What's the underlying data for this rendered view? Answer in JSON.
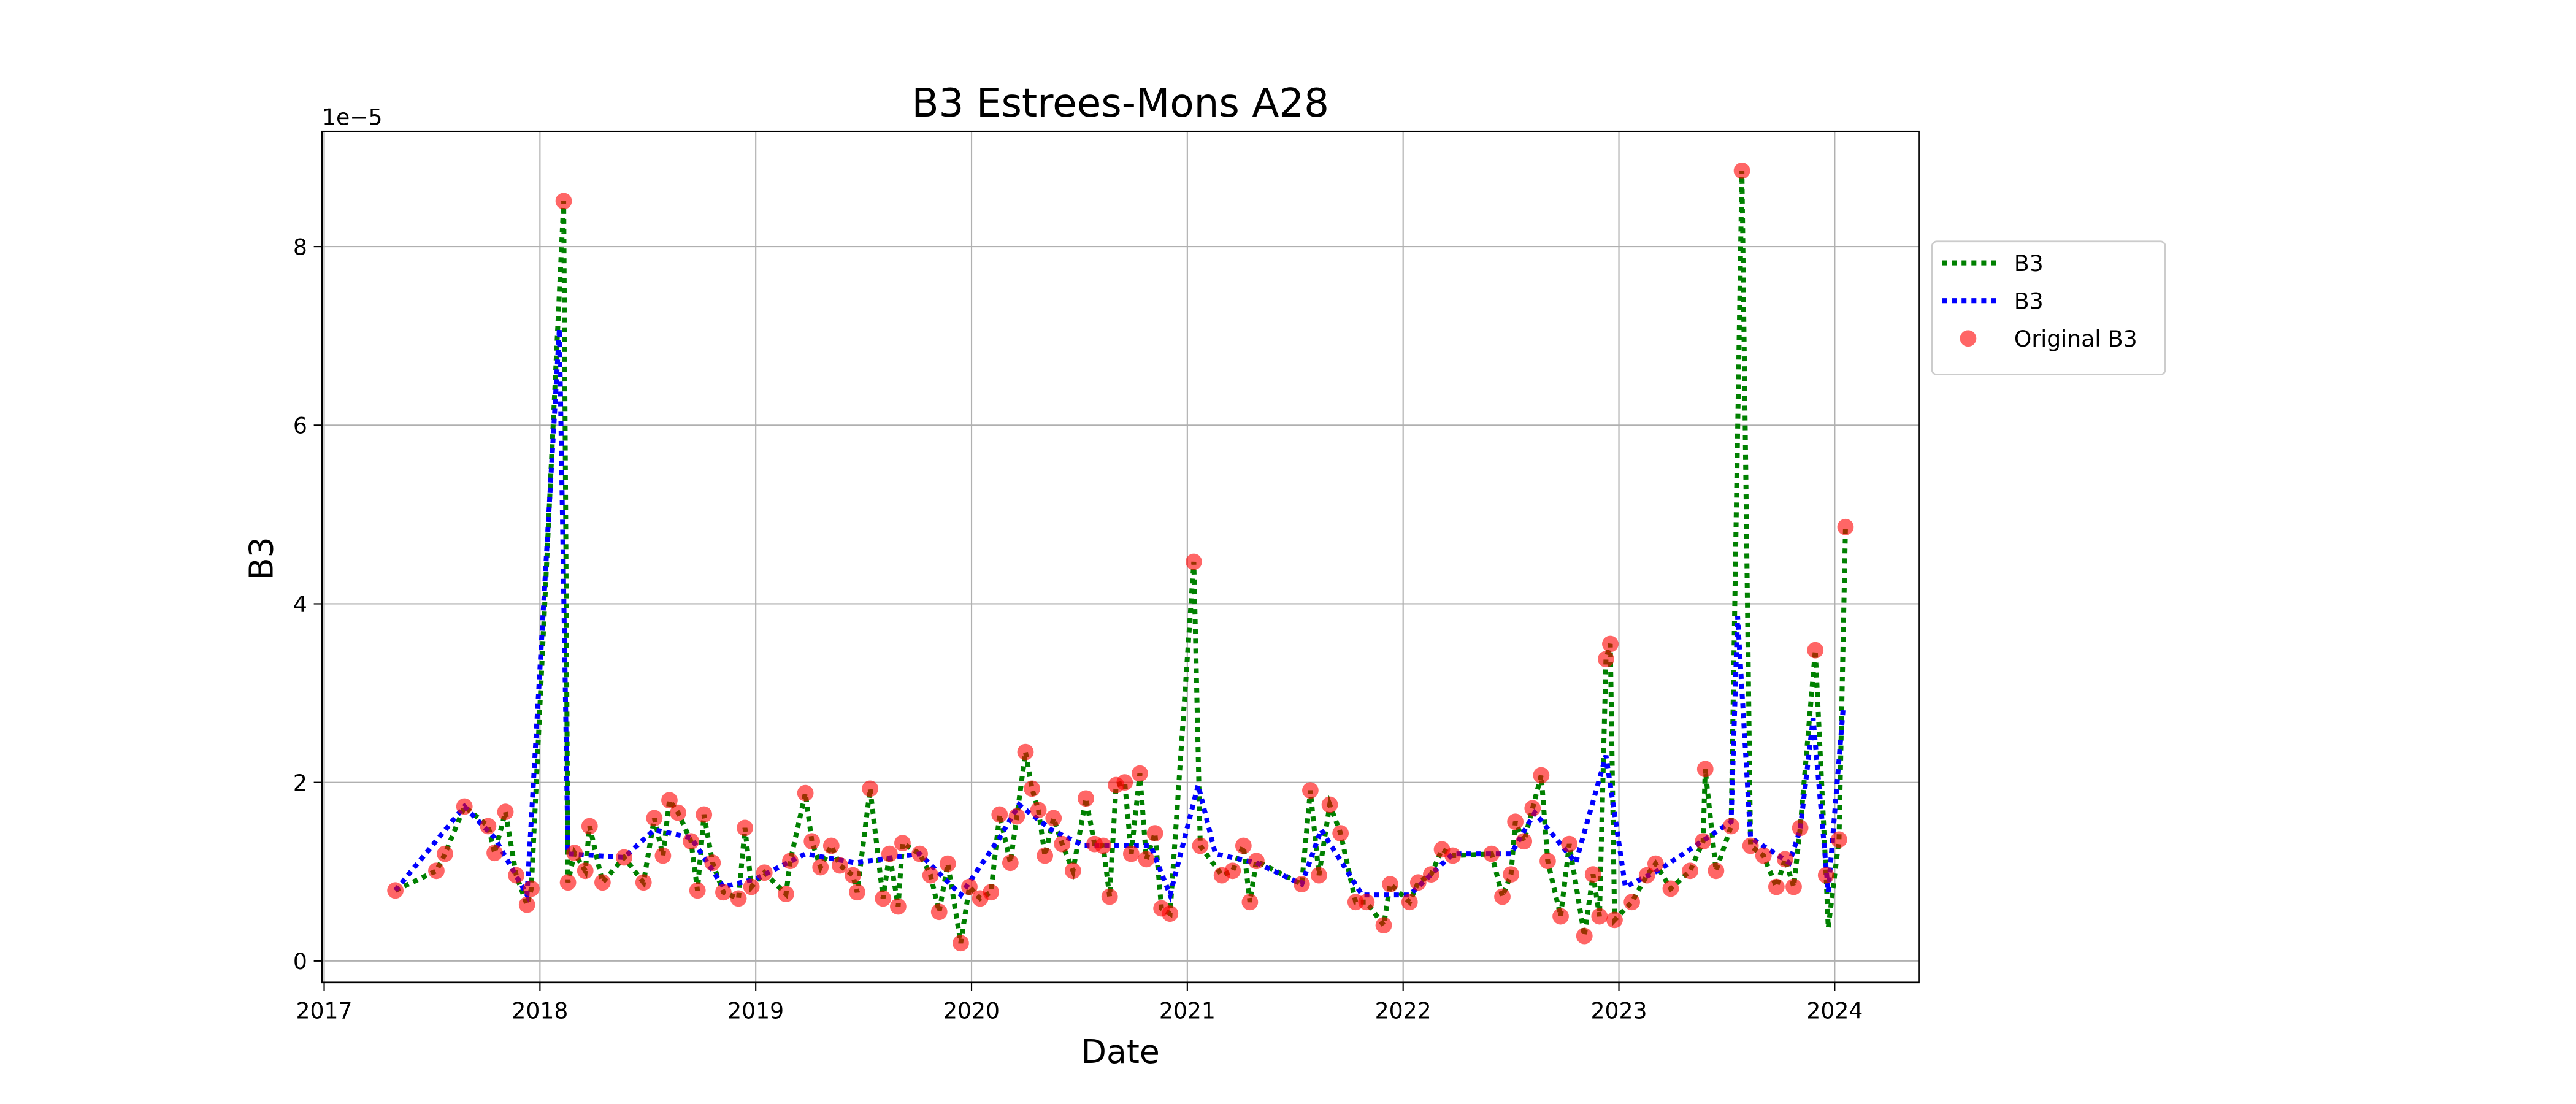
{
  "chart_data": {
    "type": "line",
    "title": "B3 Estrees-Mons A28",
    "xlabel": "Date",
    "ylabel": "B3",
    "y_offset_label": "1e−5",
    "xlim": [
      2016.99,
      2024.39
    ],
    "ylim": [
      -0.24,
      9.29
    ],
    "xticks": [
      2017,
      2018,
      2019,
      2020,
      2021,
      2022,
      2023,
      2024
    ],
    "yticks": [
      0,
      2,
      4,
      6,
      8
    ],
    "grid": true,
    "legend": "outside-right",
    "series": [
      {
        "name": "B3",
        "type": "line",
        "color": "green",
        "style": "dotted",
        "x": [
          2017.33,
          2017.52,
          2017.56,
          2017.65,
          2017.76,
          2017.79,
          2017.84,
          2017.89,
          2017.94,
          2017.96,
          2018.11,
          2018.13,
          2018.16,
          2018.21,
          2018.23,
          2018.29,
          2018.39,
          2018.48,
          2018.53,
          2018.57,
          2018.6,
          2018.64,
          2018.7,
          2018.73,
          2018.76,
          2018.8,
          2018.85,
          2018.92,
          2018.95,
          2018.98,
          2019.04,
          2019.14,
          2019.16,
          2019.23,
          2019.26,
          2019.3,
          2019.35,
          2019.39,
          2019.45,
          2019.47,
          2019.53,
          2019.59,
          2019.62,
          2019.66,
          2019.68,
          2019.76,
          2019.81,
          2019.85,
          2019.89,
          2019.95,
          2019.99,
          2020.04,
          2020.09,
          2020.13,
          2020.18,
          2020.21,
          2020.25,
          2020.28,
          2020.31,
          2020.34,
          2020.38,
          2020.42,
          2020.47,
          2020.53,
          2020.57,
          2020.61,
          2020.64,
          2020.67,
          2020.71,
          2020.74,
          2020.78,
          2020.81,
          2020.85,
          2020.88,
          2020.92,
          2021.03,
          2021.06,
          2021.16,
          2021.21,
          2021.26,
          2021.29,
          2021.32,
          2021.53,
          2021.57,
          2021.61,
          2021.66,
          2021.71,
          2021.78,
          2021.83,
          2021.91,
          2021.94,
          2022.03,
          2022.07,
          2022.13,
          2022.18,
          2022.23,
          2022.41,
          2022.46,
          2022.5,
          2022.52,
          2022.56,
          2022.6,
          2022.64,
          2022.67,
          2022.73,
          2022.77,
          2022.84,
          2022.88,
          2022.91,
          2022.94,
          2022.96,
          2022.98,
          2023.06,
          2023.13,
          2023.17,
          2023.24,
          2023.33,
          2023.39,
          2023.4,
          2023.45,
          2023.52,
          2023.57,
          2023.61,
          2023.67,
          2023.73,
          2023.77,
          2023.81,
          2023.84,
          2023.91,
          2023.96,
          2023.97,
          2024.02,
          2024.05
        ],
        "values": [
          0.79,
          1.01,
          1.2,
          1.73,
          1.51,
          1.21,
          1.67,
          0.96,
          0.63,
          0.81,
          8.51,
          0.88,
          1.21,
          1.01,
          1.51,
          0.88,
          1.16,
          0.88,
          1.6,
          1.18,
          1.8,
          1.66,
          1.34,
          0.79,
          1.64,
          1.1,
          0.77,
          0.7,
          1.49,
          0.83,
          0.99,
          0.75,
          1.12,
          1.88,
          1.34,
          1.05,
          1.29,
          1.07,
          0.96,
          0.77,
          1.93,
          0.7,
          1.2,
          0.61,
          1.32,
          1.2,
          0.96,
          0.55,
          1.09,
          0.2,
          0.83,
          0.7,
          0.77,
          1.64,
          1.1,
          1.62,
          2.34,
          1.93,
          1.69,
          1.18,
          1.6,
          1.31,
          1.01,
          1.82,
          1.31,
          1.29,
          0.72,
          1.97,
          2.0,
          1.2,
          2.1,
          1.14,
          1.43,
          0.59,
          0.53,
          4.47,
          1.29,
          0.96,
          1.01,
          1.29,
          0.66,
          1.12,
          0.86,
          1.91,
          0.96,
          1.75,
          1.43,
          0.66,
          0.66,
          0.4,
          0.86,
          0.66,
          0.88,
          0.97,
          1.25,
          1.18,
          1.2,
          0.72,
          0.97,
          1.56,
          1.34,
          1.71,
          2.08,
          1.12,
          0.5,
          1.31,
          0.28,
          0.97,
          0.5,
          3.38,
          3.55,
          0.46,
          0.66,
          0.96,
          1.09,
          0.81,
          1.01,
          1.34,
          2.15,
          1.01,
          1.51,
          8.85,
          1.29,
          1.18,
          0.83,
          1.14,
          0.83,
          1.49,
          3.48,
          0.96,
          0.37,
          1.36,
          4.86
        ]
      },
      {
        "name": "B3",
        "type": "line",
        "color": "blue",
        "style": "dotted",
        "x": [
          2017.33,
          2017.65,
          2017.79,
          2017.94,
          2018.09,
          2018.13,
          2018.39,
          2018.53,
          2018.7,
          2018.85,
          2019.0,
          2019.23,
          2019.46,
          2019.76,
          2019.95,
          2020.13,
          2020.22,
          2020.37,
          2020.52,
          2020.83,
          2020.92,
          2021.05,
          2021.13,
          2021.32,
          2021.53,
          2021.62,
          2021.81,
          2022.03,
          2022.23,
          2022.5,
          2022.61,
          2022.8,
          2022.94,
          2023.03,
          2023.18,
          2023.41,
          2023.52,
          2023.55,
          2023.61,
          2023.79,
          2023.84,
          2023.9,
          2023.97,
          2024.04
        ],
        "values": [
          0.79,
          1.73,
          1.38,
          0.74,
          7.08,
          1.2,
          1.16,
          1.47,
          1.38,
          0.83,
          0.92,
          1.2,
          1.1,
          1.2,
          0.74,
          1.38,
          1.75,
          1.47,
          1.29,
          1.29,
          0.74,
          1.97,
          1.2,
          1.1,
          0.86,
          1.47,
          0.74,
          0.74,
          1.2,
          1.2,
          1.66,
          1.1,
          2.3,
          0.83,
          1.01,
          1.38,
          1.56,
          3.86,
          1.38,
          1.1,
          1.47,
          2.72,
          0.77,
          2.85
        ]
      },
      {
        "name": "Original B3",
        "type": "scatter",
        "color": "red",
        "x": [
          2017.33,
          2017.52,
          2017.56,
          2017.65,
          2017.76,
          2017.79,
          2017.84,
          2017.89,
          2017.94,
          2017.96,
          2018.11,
          2018.13,
          2018.16,
          2018.21,
          2018.23,
          2018.29,
          2018.39,
          2018.48,
          2018.53,
          2018.57,
          2018.6,
          2018.64,
          2018.7,
          2018.73,
          2018.76,
          2018.8,
          2018.85,
          2018.92,
          2018.95,
          2018.98,
          2019.04,
          2019.14,
          2019.16,
          2019.23,
          2019.26,
          2019.3,
          2019.35,
          2019.39,
          2019.45,
          2019.47,
          2019.53,
          2019.59,
          2019.62,
          2019.66,
          2019.68,
          2019.76,
          2019.81,
          2019.85,
          2019.89,
          2019.95,
          2019.99,
          2020.04,
          2020.09,
          2020.13,
          2020.18,
          2020.21,
          2020.25,
          2020.28,
          2020.31,
          2020.34,
          2020.38,
          2020.42,
          2020.47,
          2020.53,
          2020.57,
          2020.61,
          2020.64,
          2020.67,
          2020.71,
          2020.74,
          2020.78,
          2020.81,
          2020.85,
          2020.88,
          2020.92,
          2021.03,
          2021.06,
          2021.16,
          2021.21,
          2021.26,
          2021.29,
          2021.32,
          2021.53,
          2021.57,
          2021.61,
          2021.66,
          2021.71,
          2021.78,
          2021.83,
          2021.91,
          2021.94,
          2022.03,
          2022.07,
          2022.13,
          2022.18,
          2022.23,
          2022.41,
          2022.46,
          2022.5,
          2022.52,
          2022.56,
          2022.6,
          2022.64,
          2022.67,
          2022.73,
          2022.77,
          2022.84,
          2022.88,
          2022.91,
          2022.94,
          2022.96,
          2022.98,
          2023.06,
          2023.13,
          2023.17,
          2023.24,
          2023.33,
          2023.39,
          2023.4,
          2023.45,
          2023.52,
          2023.57,
          2023.61,
          2023.67,
          2023.73,
          2023.77,
          2023.81,
          2023.84,
          2023.91,
          2023.96,
          2024.02,
          2024.05
        ],
        "values": [
          0.79,
          1.01,
          1.2,
          1.73,
          1.51,
          1.21,
          1.67,
          0.96,
          0.63,
          0.81,
          8.51,
          0.88,
          1.21,
          1.01,
          1.51,
          0.88,
          1.16,
          0.88,
          1.6,
          1.18,
          1.8,
          1.66,
          1.34,
          0.79,
          1.64,
          1.1,
          0.77,
          0.7,
          1.49,
          0.83,
          0.99,
          0.75,
          1.12,
          1.88,
          1.34,
          1.05,
          1.29,
          1.07,
          0.96,
          0.77,
          1.93,
          0.7,
          1.2,
          0.61,
          1.32,
          1.2,
          0.96,
          0.55,
          1.09,
          0.2,
          0.83,
          0.7,
          0.77,
          1.64,
          1.1,
          1.62,
          2.34,
          1.93,
          1.69,
          1.18,
          1.6,
          1.31,
          1.01,
          1.82,
          1.31,
          1.29,
          0.72,
          1.97,
          2.0,
          1.2,
          2.1,
          1.14,
          1.43,
          0.59,
          0.53,
          4.47,
          1.29,
          0.96,
          1.01,
          1.29,
          0.66,
          1.12,
          0.86,
          1.91,
          0.96,
          1.75,
          1.43,
          0.66,
          0.66,
          0.4,
          0.86,
          0.66,
          0.88,
          0.97,
          1.25,
          1.18,
          1.2,
          0.72,
          0.97,
          1.56,
          1.34,
          1.71,
          2.08,
          1.12,
          0.5,
          1.31,
          0.28,
          0.97,
          0.5,
          3.38,
          3.55,
          0.46,
          0.66,
          0.96,
          1.09,
          0.81,
          1.01,
          1.34,
          2.15,
          1.01,
          1.51,
          8.85,
          1.29,
          1.18,
          0.83,
          1.14,
          0.83,
          1.49,
          3.48,
          0.96,
          1.36,
          4.86
        ]
      }
    ]
  }
}
